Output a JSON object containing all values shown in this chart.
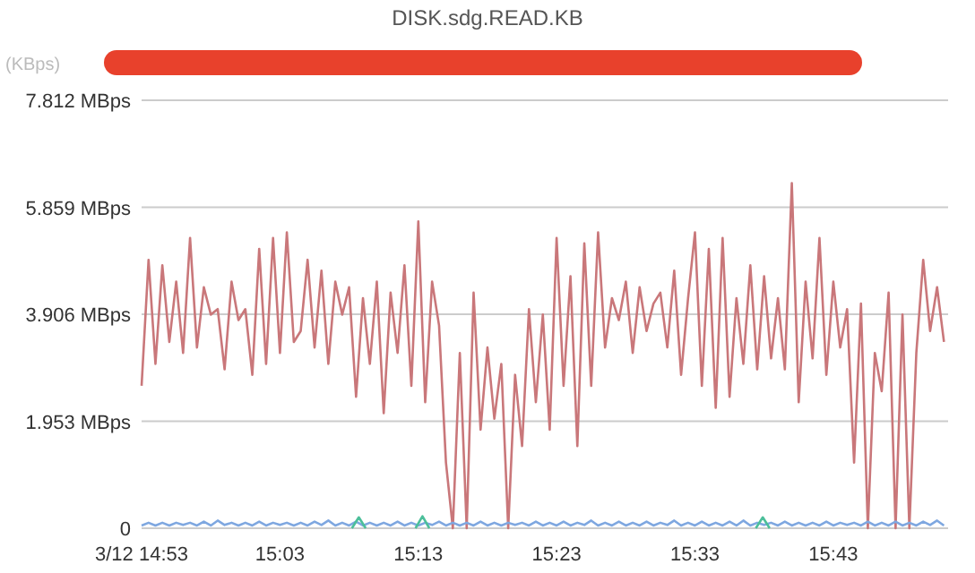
{
  "chart_data": {
    "type": "line",
    "title": "DISK.sdg.READ.KB",
    "ylabel": "(KBps)",
    "grid": "y",
    "marker": "none",
    "line_style": "solid",
    "x": [
      14.8833,
      14.8917,
      14.9,
      14.9083,
      14.9167,
      14.925,
      14.9333,
      14.9417,
      14.95,
      14.9583,
      14.9667,
      14.975,
      14.9833,
      14.9917,
      15.0,
      15.0083,
      15.0167,
      15.025,
      15.0333,
      15.0417,
      15.05,
      15.0583,
      15.0667,
      15.075,
      15.0833,
      15.0917,
      15.1,
      15.1083,
      15.1167,
      15.125,
      15.1333,
      15.1417,
      15.15,
      15.1583,
      15.1667,
      15.175,
      15.1833,
      15.1917,
      15.2,
      15.2083,
      15.2167,
      15.225,
      15.2333,
      15.2417,
      15.25,
      15.2583,
      15.2667,
      15.275,
      15.2833,
      15.2917,
      15.3,
      15.3083,
      15.3167,
      15.325,
      15.3333,
      15.3417,
      15.35,
      15.3583,
      15.3667,
      15.375,
      15.3833,
      15.3917,
      15.4,
      15.4083,
      15.4167,
      15.425,
      15.4333,
      15.4417,
      15.45,
      15.4583,
      15.4667,
      15.475,
      15.4833,
      15.4917,
      15.5,
      15.5083,
      15.5167,
      15.525,
      15.5333,
      15.5417,
      15.55,
      15.5583,
      15.5667,
      15.575,
      15.5833,
      15.5917,
      15.6,
      15.6083,
      15.6167,
      15.625,
      15.6333,
      15.6417,
      15.65,
      15.6583,
      15.6667,
      15.675,
      15.6833,
      15.6917,
      15.7,
      15.7083,
      15.7167,
      15.725,
      15.7333,
      15.7417,
      15.75,
      15.7583,
      15.7667,
      15.775,
      15.7833,
      15.7917,
      15.8,
      15.8083,
      15.8167,
      15.825,
      15.8333,
      15.8417,
      15.85
    ],
    "xlim": [
      14.8833,
      15.855
    ],
    "xticks": [
      {
        "value": 14.8833,
        "label": "3/12 14:53"
      },
      {
        "value": 15.05,
        "label": "15:03"
      },
      {
        "value": 15.2167,
        "label": "15:13"
      },
      {
        "value": 15.3833,
        "label": "15:23"
      },
      {
        "value": 15.55,
        "label": "15:33"
      },
      {
        "value": 15.7167,
        "label": "15:43"
      }
    ],
    "ylim": [
      0,
      7.812
    ],
    "yticks": [
      0,
      {
        "value": 1.953,
        "label": "1.953 MBps"
      },
      {
        "value": 3.906,
        "label": "3.906 MBps"
      },
      {
        "value": 5.859,
        "label": "5.859 MBps"
      },
      {
        "value": 7.812,
        "label": "7.812 MBps"
      }
    ],
    "series": [
      {
        "color": "#c9777a",
        "values": [
          2.6,
          4.9,
          3.0,
          4.8,
          3.4,
          4.5,
          3.2,
          5.3,
          3.3,
          4.4,
          3.9,
          4.0,
          2.9,
          4.5,
          3.8,
          4.0,
          2.8,
          5.1,
          3.0,
          5.3,
          3.2,
          5.4,
          3.4,
          3.6,
          4.9,
          3.3,
          4.7,
          3.0,
          4.5,
          3.9,
          4.4,
          2.4,
          4.2,
          3.0,
          4.5,
          2.1,
          4.3,
          3.2,
          4.8,
          2.6,
          5.6,
          2.3,
          4.5,
          3.7,
          1.2,
          0.0,
          3.2,
          0.0,
          4.3,
          1.8,
          3.3,
          2.0,
          3.0,
          0.0,
          2.8,
          1.5,
          4.0,
          2.3,
          3.9,
          1.8,
          5.3,
          2.6,
          4.6,
          1.5,
          5.2,
          2.6,
          5.4,
          3.3,
          4.2,
          3.8,
          4.5,
          3.2,
          4.4,
          3.6,
          4.1,
          4.3,
          3.3,
          4.7,
          2.8,
          4.2,
          5.4,
          2.6,
          5.1,
          2.2,
          5.3,
          2.4,
          4.2,
          3.0,
          4.8,
          2.9,
          4.6,
          3.1,
          4.2,
          2.9,
          6.3,
          2.3,
          4.5,
          3.1,
          5.3,
          2.8,
          4.5,
          3.3,
          4.0,
          1.2,
          4.1,
          0.0,
          3.2,
          2.5,
          4.3,
          0.0,
          3.9,
          0.0,
          3.2,
          4.9,
          3.6,
          4.4,
          3.4
        ]
      },
      {
        "color": "#7ea7e0",
        "values": [
          0.05,
          0.1,
          0.05,
          0.1,
          0.05,
          0.1,
          0.06,
          0.1,
          0.05,
          0.12,
          0.05,
          0.14,
          0.06,
          0.1,
          0.05,
          0.1,
          0.05,
          0.12,
          0.05,
          0.1,
          0.06,
          0.1,
          0.05,
          0.1,
          0.05,
          0.12,
          0.06,
          0.14,
          0.05,
          0.1,
          0.05,
          0.12,
          0.05,
          0.1,
          0.05,
          0.1,
          0.05,
          0.12,
          0.05,
          0.1,
          0.05,
          0.1,
          0.06,
          0.12,
          0.05,
          0.1,
          0.05,
          0.1,
          0.05,
          0.12,
          0.05,
          0.1,
          0.05,
          0.1,
          0.06,
          0.1,
          0.05,
          0.12,
          0.05,
          0.1,
          0.05,
          0.12,
          0.05,
          0.1,
          0.06,
          0.14,
          0.05,
          0.1,
          0.05,
          0.12,
          0.05,
          0.1,
          0.05,
          0.12,
          0.05,
          0.1,
          0.06,
          0.14,
          0.05,
          0.1,
          0.05,
          0.12,
          0.05,
          0.1,
          0.05,
          0.12,
          0.05,
          0.14,
          0.05,
          0.1,
          0.06,
          0.1,
          0.05,
          0.12,
          0.05,
          0.1,
          0.05,
          0.1,
          0.05,
          0.12,
          0.05,
          0.1,
          0.06,
          0.1,
          0.05,
          0.12,
          0.05,
          0.1,
          0.05,
          0.12,
          0.05,
          0.1,
          0.05,
          0.12,
          0.06,
          0.14,
          0.05
        ]
      },
      {
        "color": "#4cbf9a",
        "x": [
          15.1367,
          15.145,
          15.1533,
          15.18,
          15.2133,
          15.2217,
          15.23,
          15.4,
          15.6233,
          15.6317,
          15.64
        ],
        "values": [
          0,
          0.2,
          0,
          null,
          0,
          0.22,
          0,
          null,
          0,
          0.2,
          0
        ]
      }
    ]
  }
}
